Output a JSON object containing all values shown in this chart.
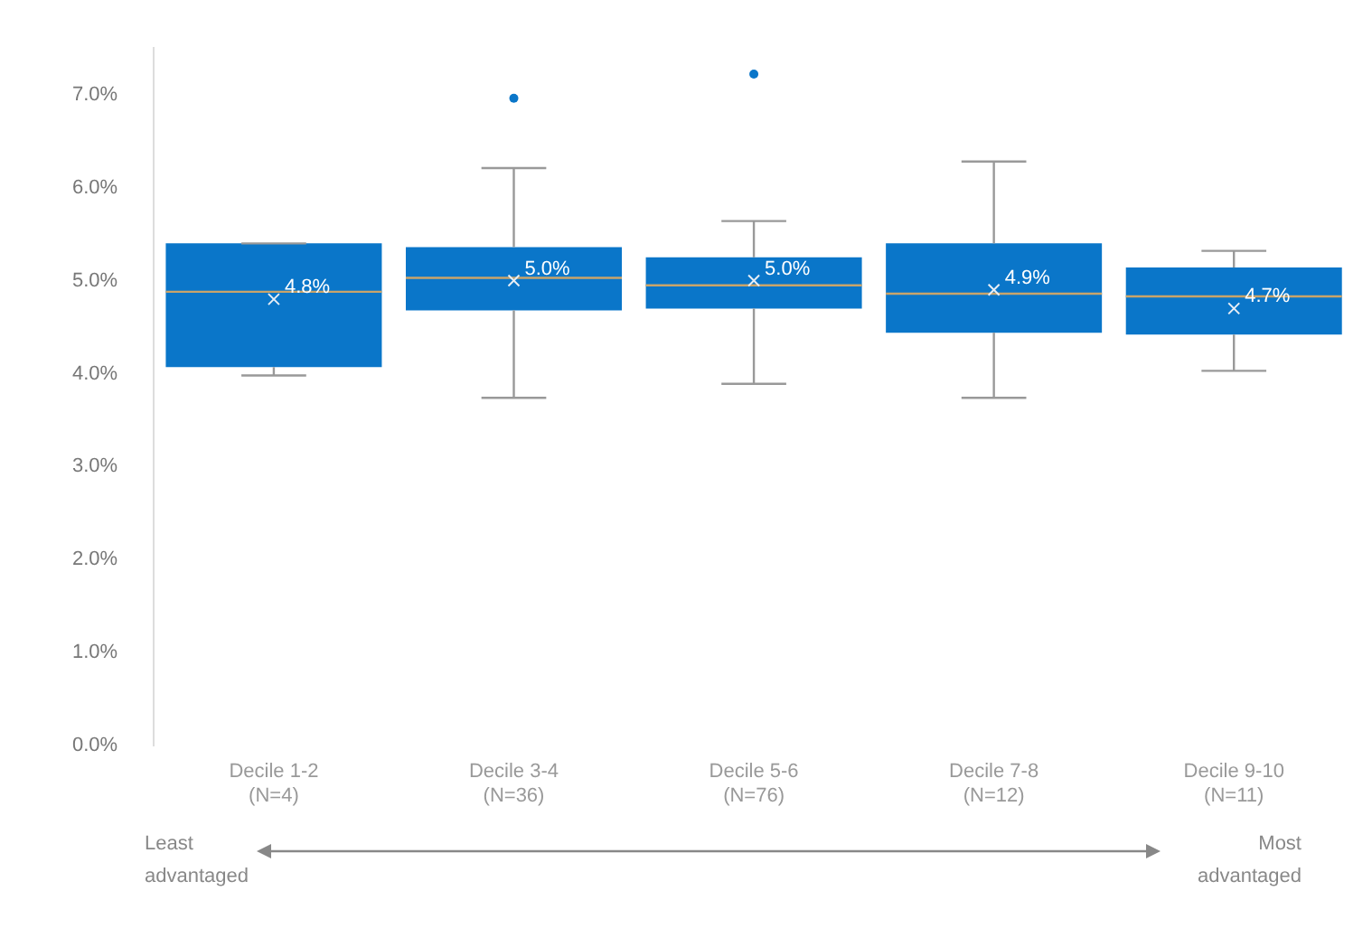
{
  "chart_data": {
    "type": "box",
    "categories": [
      "Decile 1-2\n(N=4)",
      "Decile 3-4\n(N=36)",
      "Decile 5-6\n(N=76)",
      "Decile 7-8\n(N=12)",
      "Decile 9-10\n(N=11)"
    ],
    "color": "#0a76c9",
    "boxes": [
      {
        "low": 3.98,
        "q1": 4.07,
        "median": 4.88,
        "q3": 5.4,
        "high": 5.4,
        "mean": 4.8
      },
      {
        "low": 3.74,
        "q1": 4.68,
        "median": 5.03,
        "q3": 5.36,
        "high": 6.21,
        "mean": 5.0,
        "outliers": [
          6.96
        ]
      },
      {
        "low": 3.89,
        "q1": 4.7,
        "median": 4.95,
        "q3": 5.25,
        "high": 5.64,
        "mean": 5.0,
        "outliers": [
          7.22
        ]
      },
      {
        "low": 3.74,
        "q1": 4.44,
        "median": 4.86,
        "q3": 5.4,
        "high": 6.28,
        "mean": 4.9
      },
      {
        "low": 4.03,
        "q1": 4.42,
        "median": 4.83,
        "q3": 5.14,
        "high": 5.32,
        "mean": 4.7
      }
    ],
    "value_labels": [
      "4.8%",
      "5.0%",
      "5.0%",
      "4.9%",
      "4.7%"
    ],
    "ylim": [
      0,
      7.5
    ],
    "yticks": [
      {
        "value": 0,
        "label": "0.0%"
      },
      {
        "value": 1,
        "label": "1.0%"
      },
      {
        "value": 2,
        "label": "2.0%"
      },
      {
        "value": 3,
        "label": "3.0%"
      },
      {
        "value": 4,
        "label": "4.0%"
      },
      {
        "value": 5,
        "label": "5.0%"
      },
      {
        "value": 6,
        "label": "6.0%"
      },
      {
        "value": 7,
        "label": "7.0%"
      }
    ],
    "grid": false,
    "legend": false,
    "annotations": [
      "Least advantaged",
      "Most advantaged"
    ]
  }
}
